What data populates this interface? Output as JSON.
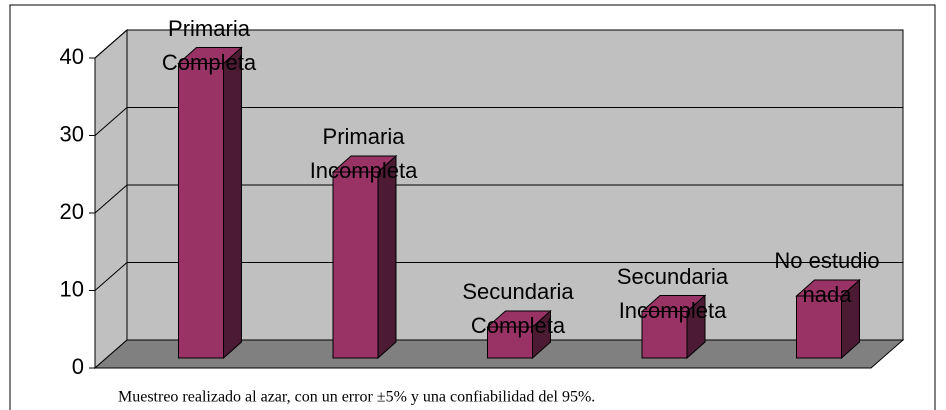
{
  "chart_data": {
    "type": "bar3d",
    "categories": [
      "Primaria Completa",
      "Primaria Incompleta",
      "Secundaria Completa",
      "Secundaria Incompleta",
      "No estudio nada"
    ],
    "values": [
      38,
      24,
      4,
      6,
      8
    ],
    "color": "#993366",
    "ylim": [
      0,
      40
    ],
    "yticks": [
      0,
      10,
      20,
      30,
      40
    ],
    "grid": true,
    "caption": "Muestreo realizado al azar, con un error ±5%  y  una confiabilidad del  95%."
  }
}
